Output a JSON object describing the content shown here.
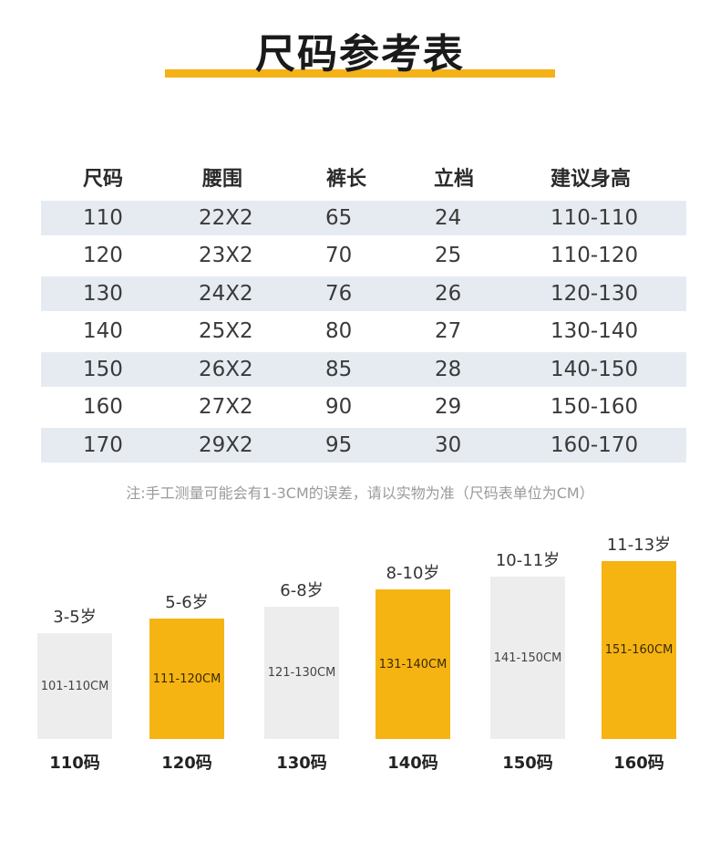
{
  "title": "尺码参考表",
  "table": {
    "headers": [
      "尺码",
      "腰围",
      "裤长",
      "立档",
      "建议身高"
    ],
    "rows": [
      [
        "110",
        "22X2",
        "65",
        "24",
        "110-110"
      ],
      [
        "120",
        "23X2",
        "70",
        "25",
        "110-120"
      ],
      [
        "130",
        "24X2",
        "76",
        "26",
        "120-130"
      ],
      [
        "140",
        "25X2",
        "80",
        "27",
        "130-140"
      ],
      [
        "150",
        "26X2",
        "85",
        "28",
        "140-150"
      ],
      [
        "160",
        "27X2",
        "90",
        "29",
        "150-160"
      ],
      [
        "170",
        "29X2",
        "95",
        "30",
        "160-170"
      ]
    ]
  },
  "note": "注:手工测量可能会有1-3CM的误差，请以实物为准（尺码表单位为CM）",
  "colors": {
    "accent": "#f6b413",
    "row_shade": "#e6ebf2",
    "bar_grey": "#ededed"
  },
  "size_bars": [
    {
      "age": "3-5岁",
      "height_range": "101-110CM",
      "size": "110码",
      "color": "grey"
    },
    {
      "age": "5-6岁",
      "height_range": "111-120CM",
      "size": "120码",
      "color": "gold"
    },
    {
      "age": "6-8岁",
      "height_range": "121-130CM",
      "size": "130码",
      "color": "grey"
    },
    {
      "age": "8-10岁",
      "height_range": "131-140CM",
      "size": "140码",
      "color": "gold"
    },
    {
      "age": "10-11岁",
      "height_range": "141-150CM",
      "size": "150码",
      "color": "grey"
    },
    {
      "age": "11-13岁",
      "height_range": "151-160CM",
      "size": "160码",
      "color": "gold"
    }
  ]
}
